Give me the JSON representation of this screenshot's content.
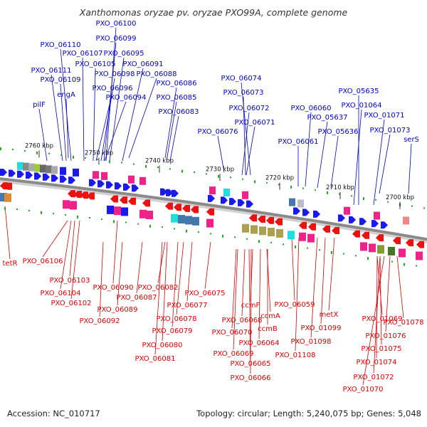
{
  "title": "Xanthomonas oryzae pv. oryzae PXO99A, complete genome",
  "footer": {
    "accession": "Accession: NC_010717",
    "summary": "Topology: circular; Length: 5,240,075 bp; Genes: 5,048"
  },
  "colors": {
    "forward_label": "#0000cc",
    "reverse_label": "#dd0000",
    "forward_gene": "#1a1aee",
    "reverse_gene": "#ee1111",
    "backbone": "#8a8a8a",
    "tick": "#22aa22",
    "pink_feature": "#ee2288",
    "cyan_feature": "#22dddd",
    "olive_feature": "#aaa050",
    "steel_feature": "#4477aa",
    "gray_feature": "#888888"
  },
  "ticks": [
    "2760 kbp",
    "2750 kbp",
    "2740 kbp",
    "2730 kbp",
    "2720 kbp",
    "2710 kbp",
    "2700 kbp"
  ],
  "top_labels": [
    "PXO_06100",
    "PXO_06099",
    "PXO_06110",
    "PXO_06107",
    "PXO_06095",
    "PXO_06105",
    "PXO_06091",
    "PXO_06111",
    "PXO_06098",
    "PXO_06088",
    "PXO_06109",
    "PXO_06086",
    "PXO_06096",
    "PXO_06074",
    "engA",
    "PXO_06094",
    "PXO_06085",
    "PXO_06073",
    "PXO_05635",
    "pilF",
    "PXO_06072",
    "PXO_06060",
    "PXO_01064",
    "PXO_06083",
    "PXO_05637",
    "PXO_01071",
    "PXO_06071",
    "PXO_01073",
    "PXO_06076",
    "PXO_05636",
    "PXO_06061",
    "serS"
  ],
  "bottom_labels": [
    "tetR",
    "PXO_06106",
    "PXO_06103",
    "PXO_06104",
    "PXO_06102",
    "PXO_06090",
    "PXO_06082",
    "PXO_06075",
    "PXO_06087",
    "PXO_06089",
    "PXO_06059",
    "PXO_06077",
    "ccmF",
    "PXO_06092",
    "PXO_06078",
    "PXO_06068",
    "ccmA",
    "metX",
    "PXO_01069",
    "PXO_01078",
    "PXO_06079",
    "PXO_06070",
    "ccmB",
    "PXO_01099",
    "PXO_01076",
    "PXO_06080",
    "PXO_06064",
    "PXO_01098",
    "PXO_01075",
    "PXO_06069",
    "PXO_01108",
    "PXO_06081",
    "PXO_06065",
    "PXO_01074",
    "PXO_01072",
    "PXO_06066",
    "PXO_01070"
  ]
}
